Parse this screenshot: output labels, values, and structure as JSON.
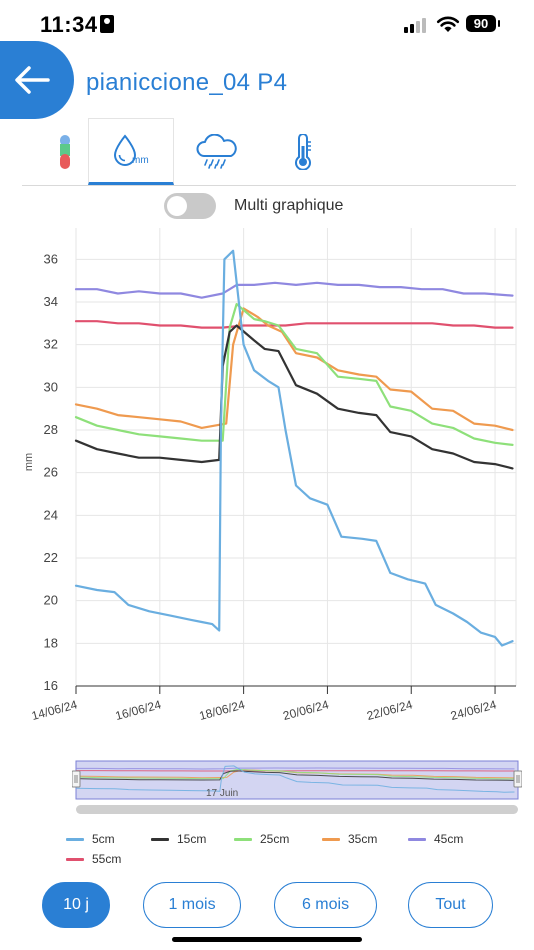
{
  "status_bar": {
    "time": "11:34",
    "battery": "90"
  },
  "header": {
    "title": "pianiccione_04 P4",
    "back_icon": "arrow-left-icon"
  },
  "tabs": [
    {
      "icon": "color-gauge-icon",
      "active": false
    },
    {
      "icon": "water-drop-mm-icon",
      "active": true,
      "icon_text": "mm"
    },
    {
      "icon": "cloud-rain-icon",
      "active": false
    },
    {
      "icon": "thermometer-icon",
      "active": false
    }
  ],
  "toggle": {
    "label": "Multi graphique",
    "on": false
  },
  "colors": {
    "accent": "#2a7fd4",
    "5cm": "#6aaee0",
    "15cm": "#333333",
    "25cm": "#8ee07a",
    "35cm": "#ef9a4f",
    "45cm": "#8f88e0",
    "55cm": "#e0506e"
  },
  "chart_data": {
    "type": "line",
    "ylabel": "mm",
    "xlabel": "",
    "ylim": [
      16,
      37
    ],
    "yticks": [
      16,
      18,
      20,
      22,
      24,
      26,
      28,
      30,
      32,
      34,
      36
    ],
    "xlim": [
      "14/06/24",
      "24/06/24 12:00"
    ],
    "xticks": [
      "14/06/24",
      "16/06/24",
      "18/06/24",
      "20/06/24",
      "22/06/24",
      "24/06/24"
    ],
    "grid": true,
    "legend_position": "bottom",
    "navigator_label": "17 Juin",
    "series": [
      {
        "name": "5cm",
        "points": [
          [
            "14/06/24 00:00",
            20.7
          ],
          [
            "14/06/24 12:00",
            20.5
          ],
          [
            "14/06/24 22:00",
            20.4
          ],
          [
            "15/06/24 06:00",
            19.8
          ],
          [
            "15/06/24 18:00",
            19.5
          ],
          [
            "16/06/24 06:00",
            19.3
          ],
          [
            "16/06/24 18:00",
            19.1
          ],
          [
            "17/06/24 00:00",
            19.0
          ],
          [
            "17/06/24 06:00",
            18.9
          ],
          [
            "17/06/24 10:00",
            18.6
          ],
          [
            "17/06/24 11:00",
            28.0
          ],
          [
            "17/06/24 13:00",
            36.0
          ],
          [
            "17/06/24 18:00",
            36.4
          ],
          [
            "18/06/24 00:00",
            32.0
          ],
          [
            "18/06/24 06:00",
            30.8
          ],
          [
            "18/06/24 14:00",
            30.3
          ],
          [
            "18/06/24 20:00",
            30.0
          ],
          [
            "19/06/24 00:00",
            28.0
          ],
          [
            "19/06/24 06:00",
            25.4
          ],
          [
            "19/06/24 14:00",
            24.8
          ],
          [
            "20/06/24 00:00",
            24.5
          ],
          [
            "20/06/24 08:00",
            23.0
          ],
          [
            "20/06/24 20:00",
            22.9
          ],
          [
            "21/06/24 04:00",
            22.8
          ],
          [
            "21/06/24 12:00",
            21.3
          ],
          [
            "21/06/24 22:00",
            21.0
          ],
          [
            "22/06/24 08:00",
            20.8
          ],
          [
            "22/06/24 14:00",
            19.8
          ],
          [
            "23/06/24 00:00",
            19.4
          ],
          [
            "23/06/24 08:00",
            19.0
          ],
          [
            "23/06/24 16:00",
            18.5
          ],
          [
            "24/06/24 00:00",
            18.3
          ],
          [
            "24/06/24 04:00",
            17.9
          ],
          [
            "24/06/24 10:00",
            18.1
          ]
        ]
      },
      {
        "name": "15cm",
        "points": [
          [
            "14/06/24 00:00",
            27.5
          ],
          [
            "14/06/24 12:00",
            27.1
          ],
          [
            "15/06/24 00:00",
            26.9
          ],
          [
            "15/06/24 12:00",
            26.7
          ],
          [
            "16/06/24 00:00",
            26.7
          ],
          [
            "16/06/24 12:00",
            26.6
          ],
          [
            "17/06/24 00:00",
            26.5
          ],
          [
            "17/06/24 10:00",
            26.6
          ],
          [
            "17/06/24 12:00",
            31.0
          ],
          [
            "17/06/24 16:00",
            32.6
          ],
          [
            "17/06/24 20:00",
            32.9
          ],
          [
            "18/06/24 06:00",
            32.2
          ],
          [
            "18/06/24 12:00",
            31.8
          ],
          [
            "18/06/24 20:00",
            31.7
          ],
          [
            "19/06/24 06:00",
            30.1
          ],
          [
            "19/06/24 18:00",
            29.7
          ],
          [
            "20/06/24 06:00",
            29.0
          ],
          [
            "20/06/24 18:00",
            28.8
          ],
          [
            "21/06/24 04:00",
            28.7
          ],
          [
            "21/06/24 12:00",
            27.9
          ],
          [
            "22/06/24 00:00",
            27.7
          ],
          [
            "22/06/24 12:00",
            27.1
          ],
          [
            "23/06/24 00:00",
            26.9
          ],
          [
            "23/06/24 12:00",
            26.5
          ],
          [
            "24/06/24 00:00",
            26.4
          ],
          [
            "24/06/24 10:00",
            26.2
          ]
        ]
      },
      {
        "name": "25cm",
        "points": [
          [
            "14/06/24 00:00",
            28.6
          ],
          [
            "14/06/24 12:00",
            28.2
          ],
          [
            "15/06/24 00:00",
            28.0
          ],
          [
            "15/06/24 12:00",
            27.8
          ],
          [
            "16/06/24 00:00",
            27.7
          ],
          [
            "16/06/24 12:00",
            27.6
          ],
          [
            "17/06/24 00:00",
            27.5
          ],
          [
            "17/06/24 12:00",
            27.5
          ],
          [
            "17/06/24 16:00",
            32.8
          ],
          [
            "17/06/24 20:00",
            33.9
          ],
          [
            "18/06/24 06:00",
            33.2
          ],
          [
            "18/06/24 12:00",
            33.1
          ],
          [
            "18/06/24 20:00",
            32.9
          ],
          [
            "19/06/24 06:00",
            31.8
          ],
          [
            "19/06/24 18:00",
            31.6
          ],
          [
            "20/06/24 06:00",
            30.5
          ],
          [
            "20/06/24 18:00",
            30.4
          ],
          [
            "21/06/24 04:00",
            30.3
          ],
          [
            "21/06/24 12:00",
            29.1
          ],
          [
            "22/06/24 00:00",
            28.9
          ],
          [
            "22/06/24 12:00",
            28.3
          ],
          [
            "23/06/24 00:00",
            28.1
          ],
          [
            "23/06/24 12:00",
            27.6
          ],
          [
            "24/06/24 00:00",
            27.4
          ],
          [
            "24/06/24 10:00",
            27.3
          ]
        ]
      },
      {
        "name": "35cm",
        "points": [
          [
            "14/06/24 00:00",
            29.2
          ],
          [
            "14/06/24 12:00",
            29.0
          ],
          [
            "15/06/24 00:00",
            28.7
          ],
          [
            "15/06/24 12:00",
            28.6
          ],
          [
            "16/06/24 00:00",
            28.5
          ],
          [
            "16/06/24 12:00",
            28.4
          ],
          [
            "17/06/24 00:00",
            28.1
          ],
          [
            "17/06/24 14:00",
            28.3
          ],
          [
            "17/06/24 18:00",
            32.0
          ],
          [
            "18/06/24 00:00",
            33.7
          ],
          [
            "18/06/24 08:00",
            33.3
          ],
          [
            "18/06/24 14:00",
            32.9
          ],
          [
            "18/06/24 22:00",
            32.6
          ],
          [
            "19/06/24 06:00",
            31.6
          ],
          [
            "19/06/24 18:00",
            31.4
          ],
          [
            "20/06/24 06:00",
            30.8
          ],
          [
            "20/06/24 18:00",
            30.6
          ],
          [
            "21/06/24 04:00",
            30.5
          ],
          [
            "21/06/24 12:00",
            29.9
          ],
          [
            "22/06/24 00:00",
            29.8
          ],
          [
            "22/06/24 12:00",
            29.0
          ],
          [
            "23/06/24 00:00",
            28.9
          ],
          [
            "23/06/24 12:00",
            28.3
          ],
          [
            "24/06/24 00:00",
            28.2
          ],
          [
            "24/06/24 10:00",
            28.0
          ]
        ]
      },
      {
        "name": "45cm",
        "points": [
          [
            "14/06/24 00:00",
            34.6
          ],
          [
            "14/06/24 12:00",
            34.6
          ],
          [
            "15/06/24 00:00",
            34.4
          ],
          [
            "15/06/24 12:00",
            34.5
          ],
          [
            "16/06/24 00:00",
            34.4
          ],
          [
            "16/06/24 12:00",
            34.4
          ],
          [
            "17/06/24 00:00",
            34.2
          ],
          [
            "17/06/24 12:00",
            34.4
          ],
          [
            "17/06/24 20:00",
            34.8
          ],
          [
            "18/06/24 06:00",
            34.8
          ],
          [
            "18/06/24 18:00",
            34.9
          ],
          [
            "19/06/24 06:00",
            34.8
          ],
          [
            "19/06/24 18:00",
            34.9
          ],
          [
            "20/06/24 06:00",
            34.8
          ],
          [
            "20/06/24 18:00",
            34.8
          ],
          [
            "21/06/24 06:00",
            34.7
          ],
          [
            "21/06/24 18:00",
            34.7
          ],
          [
            "22/06/24 06:00",
            34.6
          ],
          [
            "22/06/24 18:00",
            34.6
          ],
          [
            "23/06/24 06:00",
            34.4
          ],
          [
            "23/06/24 18:00",
            34.4
          ],
          [
            "24/06/24 10:00",
            34.3
          ]
        ]
      },
      {
        "name": "55cm",
        "points": [
          [
            "14/06/24 00:00",
            33.1
          ],
          [
            "14/06/24 12:00",
            33.1
          ],
          [
            "15/06/24 00:00",
            33.0
          ],
          [
            "15/06/24 12:00",
            33.0
          ],
          [
            "16/06/24 00:00",
            32.9
          ],
          [
            "16/06/24 12:00",
            32.9
          ],
          [
            "17/06/24 00:00",
            32.8
          ],
          [
            "17/06/24 12:00",
            32.8
          ],
          [
            "18/06/24 00:00",
            32.9
          ],
          [
            "18/06/24 12:00",
            32.9
          ],
          [
            "19/06/24 00:00",
            32.9
          ],
          [
            "19/06/24 12:00",
            33.0
          ],
          [
            "20/06/24 00:00",
            33.0
          ],
          [
            "20/06/24 12:00",
            33.0
          ],
          [
            "21/06/24 00:00",
            33.0
          ],
          [
            "21/06/24 12:00",
            33.0
          ],
          [
            "22/06/24 00:00",
            33.0
          ],
          [
            "22/06/24 12:00",
            33.0
          ],
          [
            "23/06/24 00:00",
            32.9
          ],
          [
            "23/06/24 12:00",
            32.9
          ],
          [
            "24/06/24 00:00",
            32.8
          ],
          [
            "24/06/24 10:00",
            32.8
          ]
        ]
      }
    ]
  },
  "range_buttons": [
    {
      "label": "10 j",
      "active": true
    },
    {
      "label": "1 mois",
      "active": false
    },
    {
      "label": "6 mois",
      "active": false
    },
    {
      "label": "Tout",
      "active": false
    }
  ]
}
